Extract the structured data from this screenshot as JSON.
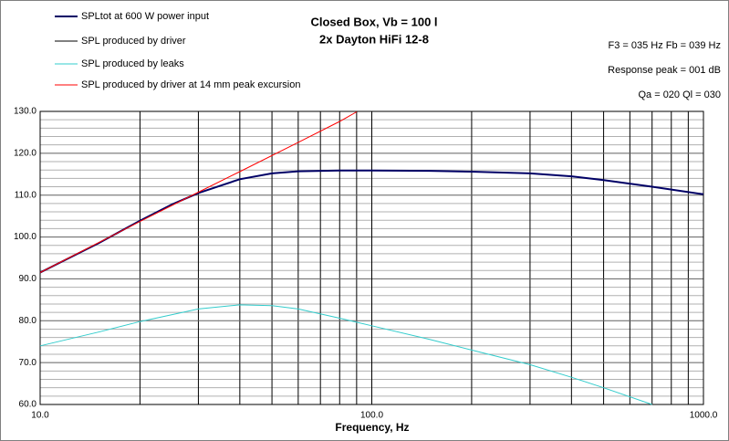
{
  "chart_data": {
    "type": "line",
    "title": "Closed Box, Vb = 100 l",
    "subtitle": "2x Dayton HiFi 12-8",
    "annotations": [
      "F3 = 035 Hz  Fb = 039 Hz",
      "Response peak = 001 dB",
      "Qa = 020  Ql = 030"
    ],
    "x_label": "Frequency, Hz",
    "xscale": "log",
    "xlim": [
      10,
      1000
    ],
    "ylim": [
      60,
      130
    ],
    "xticks": [
      {
        "value": 10,
        "label": "10.0"
      },
      {
        "value": 100,
        "label": "100.0"
      },
      {
        "value": 1000,
        "label": "1000.0"
      }
    ],
    "yticks": [
      {
        "value": 60,
        "label": "60.0"
      },
      {
        "value": 70,
        "label": "70.0"
      },
      {
        "value": 80,
        "label": "80.0"
      },
      {
        "value": 90,
        "label": "90.0"
      },
      {
        "value": 100,
        "label": "100.0"
      },
      {
        "value": 110,
        "label": "110.0"
      },
      {
        "value": 120,
        "label": "120.0"
      },
      {
        "value": 130,
        "label": "130.0"
      }
    ],
    "minor_xticks": [
      20,
      30,
      40,
      50,
      60,
      70,
      80,
      90,
      200,
      300,
      400,
      500,
      600,
      700,
      800,
      900
    ],
    "minor_yticks": [
      62,
      64,
      66,
      68,
      72,
      74,
      76,
      78,
      82,
      84,
      86,
      88,
      92,
      94,
      96,
      98,
      102,
      104,
      106,
      108,
      112,
      114,
      116,
      118,
      122,
      124,
      126,
      128
    ],
    "grid": true,
    "series": [
      {
        "name": "SPL produced by driver",
        "color": "#000000",
        "width": 1,
        "x": [
          10,
          15,
          20,
          25,
          30,
          40,
          50,
          60,
          80,
          100,
          150,
          200,
          300,
          400,
          500,
          700,
          1000
        ],
        "values": [
          91.5,
          98.5,
          103.9,
          107.8,
          110.5,
          113.8,
          115.2,
          115.7,
          115.9,
          115.9,
          115.8,
          115.6,
          115.2,
          114.5,
          113.6,
          112.0,
          110.2
        ]
      },
      {
        "name": "SPLtot at 600 W power input",
        "color": "#000066",
        "width": 2,
        "x": [
          10,
          15,
          20,
          25,
          30,
          40,
          50,
          60,
          80,
          100,
          150,
          200,
          300,
          400,
          500,
          700,
          1000
        ],
        "values": [
          91.5,
          98.5,
          103.9,
          107.8,
          110.5,
          113.8,
          115.2,
          115.7,
          115.9,
          115.9,
          115.8,
          115.6,
          115.2,
          114.5,
          113.6,
          112.0,
          110.2
        ]
      },
      {
        "name": "SPL produced by leaks",
        "color": "#33cccc",
        "width": 1,
        "x": [
          10,
          15,
          20,
          30,
          40,
          50,
          60,
          80,
          100,
          150,
          200,
          300,
          400,
          500,
          700
        ],
        "values": [
          74.0,
          77.3,
          79.8,
          82.8,
          83.8,
          83.6,
          82.8,
          80.6,
          78.8,
          75.5,
          73.0,
          69.5,
          66.5,
          64.0,
          60.0
        ]
      },
      {
        "name": "SPL produced by driver at 14 mm peak excursion",
        "color": "#ff0000",
        "width": 1,
        "x": [
          10,
          20,
          30,
          40,
          60,
          80,
          90
        ],
        "values": [
          91.5,
          103.7,
          110.7,
          115.6,
          122.6,
          127.6,
          129.9
        ]
      }
    ],
    "legend_order": [
      1,
      0,
      2,
      3
    ]
  }
}
